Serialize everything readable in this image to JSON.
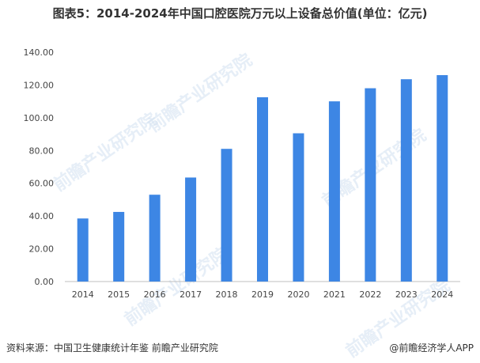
{
  "title": "图表5：2014-2024年中国口腔医院万元以上设备总价值(单位：亿元)",
  "watermark": "前瞻产业研究院",
  "footer": {
    "source": "资料来源：中国卫生健康统计年鉴 前瞻产业研究院",
    "credit": "@前瞻经济学人APP"
  },
  "colors": {
    "bar": "#3d86e4",
    "axis": "#bfbfbf"
  },
  "chart_data": {
    "type": "bar",
    "title": "图表5：2014-2024年中国口腔医院万元以上设备总价值(单位：亿元)",
    "categories": [
      "2014",
      "2015",
      "2016",
      "2017",
      "2018",
      "2019",
      "2020",
      "2021",
      "2022",
      "2023",
      "2024"
    ],
    "values": [
      38.5,
      42.5,
      53,
      63.5,
      81,
      112.5,
      90.5,
      110,
      118,
      123.5,
      126
    ],
    "ylim": [
      0,
      140
    ],
    "yticks": [
      "0.00",
      "20.00",
      "40.00",
      "60.00",
      "80.00",
      "100.00",
      "120.00",
      "140.00"
    ],
    "grid": false,
    "legend": "none",
    "xlabel": "",
    "ylabel": ""
  }
}
